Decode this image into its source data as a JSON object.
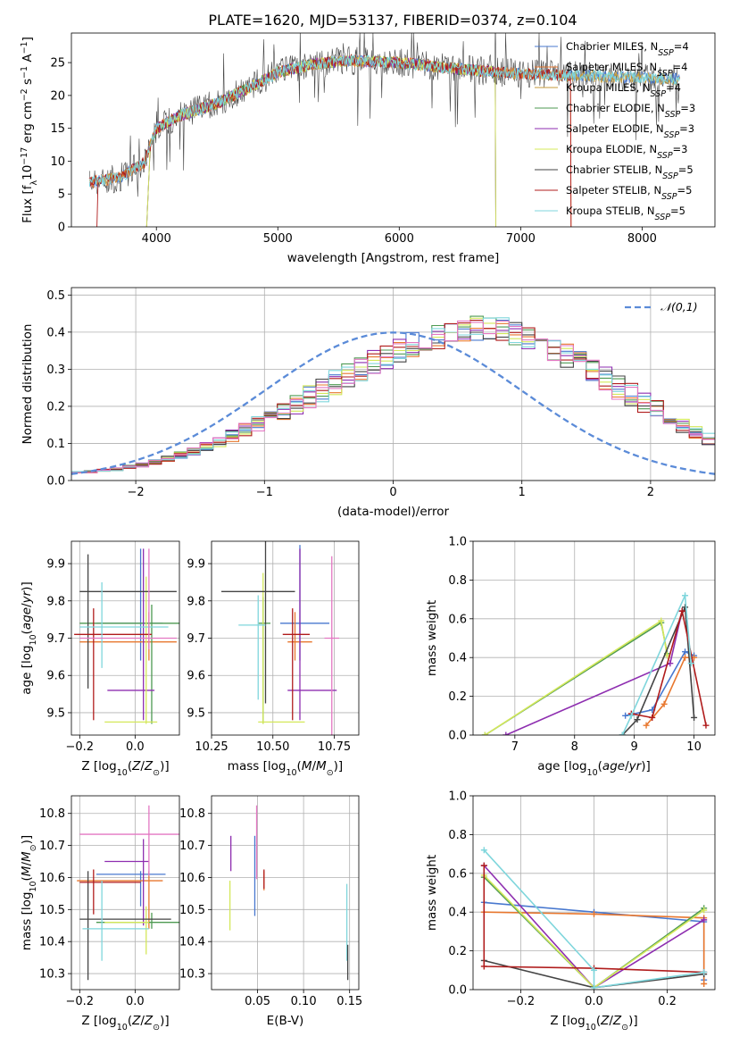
{
  "colors": {
    "Chabrier MILES": "#4878cf",
    "Salpeter MILES": "#e8772e",
    "Kroupa MILES": "#c49a3a",
    "Chabrier ELODIE": "#4e9a52",
    "Salpeter ELODIE": "#8e2eb0",
    "Kroupa ELODIE": "#d4e85a",
    "Chabrier STELIB": "#444444",
    "Salpeter STELIB": "#b01c1c",
    "Kroupa STELIB": "#7fd6dc",
    "gauss": "#5b8bd8",
    "extra": "#e377c2"
  },
  "chart_data": [
    {
      "type": "line",
      "title": "PLATE=1620, MJD=53137, FIBERID=0374, z=0.104",
      "xlabel": "wavelength [Angstrom, rest frame]",
      "ylabel": "Flux [f_λ10^-17 erg cm^-2 s^-1 A^-1]",
      "xlim": [
        3300,
        8600
      ],
      "ylim": [
        0,
        29.5
      ],
      "xticks": [
        4000,
        5000,
        6000,
        7000,
        8000
      ],
      "yticks": [
        0,
        5,
        10,
        15,
        20,
        25
      ],
      "legend": [
        "Chabrier MILES, N_SSP=4",
        "Salpeter MILES, N_SSP=4",
        "Kroupa MILES, N_SSP=4",
        "Chabrier ELODIE, N_SSP=3",
        "Salpeter ELODIE, N_SSP=3",
        "Kroupa ELODIE, N_SSP=3",
        "Chabrier STELIB, N_SSP=5",
        "Salpeter STELIB, N_SSP=5",
        "Kroupa STELIB, N_SSP=5"
      ],
      "legend_position": "right",
      "continuum": {
        "x": [
          3450,
          3700,
          3900,
          4000,
          4200,
          4500,
          4800,
          5000,
          5300,
          5600,
          6000,
          6500,
          7000,
          7500,
          8000,
          8300
        ],
        "y": [
          6.8,
          7.5,
          9.8,
          15.0,
          17.0,
          18.8,
          21.5,
          23.5,
          24.8,
          25.3,
          25.0,
          24.0,
          23.3,
          23.0,
          22.7,
          22.5
        ]
      }
    },
    {
      "type": "histogram",
      "xlabel": "(data-model)/error",
      "ylabel": "Normed distribution",
      "xlim": [
        -2.5,
        2.5
      ],
      "ylim": [
        0,
        0.52
      ],
      "xticks": [
        -2,
        -1,
        0,
        1,
        2
      ],
      "yticks": [
        0.0,
        0.1,
        0.2,
        0.3,
        0.4,
        0.5
      ],
      "legend": "𝒩(0,1)",
      "bin_width": 0.1,
      "bin_start": -2.5,
      "base": [
        0.022,
        0.024,
        0.027,
        0.031,
        0.036,
        0.042,
        0.05,
        0.058,
        0.068,
        0.08,
        0.092,
        0.105,
        0.12,
        0.136,
        0.152,
        0.168,
        0.186,
        0.204,
        0.225,
        0.245,
        0.264,
        0.282,
        0.3,
        0.318,
        0.336,
        0.352,
        0.366,
        0.378,
        0.39,
        0.398,
        0.404,
        0.408,
        0.408,
        0.404,
        0.396,
        0.386,
        0.374,
        0.358,
        0.34,
        0.32,
        0.298,
        0.276,
        0.254,
        0.232,
        0.212,
        0.19,
        0.168,
        0.148,
        0.13,
        0.112,
        0.097,
        0.083,
        0.07,
        0.06,
        0.052,
        0.045,
        0.04,
        0.035,
        0.031,
        0.027,
        0.024,
        0.022,
        0.02,
        0.02,
        0.02,
        0.02,
        0.02,
        0.02,
        0.02,
        0.02,
        0.02,
        0.02,
        0.02,
        0.02,
        0.02,
        0.02,
        0.02,
        0.02,
        0.02,
        0.02,
        0.02,
        0.02,
        0.02,
        0.02,
        0.02,
        0.02,
        0.02,
        0.02,
        0.02,
        0.02
      ]
    },
    {
      "type": "scatter",
      "xlabel": "Z [log10(Z/Z⊙)]",
      "ylabel": "age [log10(age/yr)]",
      "xlim": [
        -0.23,
        0.16
      ],
      "ylim": [
        9.44,
        9.96
      ],
      "xticks": [
        -0.2,
        0.0
      ],
      "yticks": [
        9.5,
        9.6,
        9.7,
        9.8,
        9.9
      ],
      "points": [
        {
          "model": "Chabrier MILES",
          "x": 0.02,
          "y": 9.74,
          "xerr": [
            0.16,
            0.08
          ],
          "yerr": [
            0.1,
            0.2
          ]
        },
        {
          "model": "Salpeter MILES",
          "x": 0.05,
          "y": 9.69,
          "xerr": [
            0.25,
            0.1
          ],
          "yerr": [
            0.05,
            0.08
          ]
        },
        {
          "model": "Chabrier ELODIE",
          "x": 0.06,
          "y": 9.74,
          "xerr": [
            0.26,
            0.1
          ],
          "yerr": [
            0.27,
            0.05
          ]
        },
        {
          "model": "Salpeter ELODIE",
          "x": 0.03,
          "y": 9.56,
          "xerr": [
            0.13,
            0.04
          ],
          "yerr": [
            0.08,
            0.38
          ]
        },
        {
          "model": "Kroupa ELODIE",
          "x": 0.04,
          "y": 9.475,
          "xerr": [
            0.15,
            0.04
          ],
          "yerr": [
            0.005,
            0.39
          ]
        },
        {
          "model": "Chabrier STELIB",
          "x": -0.17,
          "y": 9.825,
          "xerr": [
            0.03,
            0.32
          ],
          "yerr": [
            0.26,
            0.1
          ]
        },
        {
          "model": "Salpeter STELIB",
          "x": -0.15,
          "y": 9.71,
          "xerr": [
            0.07,
            0.21
          ],
          "yerr": [
            0.23,
            0.07
          ]
        },
        {
          "model": "Kroupa STELIB",
          "x": -0.12,
          "y": 9.73,
          "xerr": [
            0.08,
            0.24
          ],
          "yerr": [
            0.11,
            0.12
          ]
        },
        {
          "model": "extra",
          "x": 0.05,
          "y": 9.7,
          "xerr": [
            0.25,
            0.1
          ],
          "yerr": [
            0.03,
            0.24
          ]
        }
      ]
    },
    {
      "type": "scatter",
      "xlabel": "mass [log10(M/M⊙)]",
      "ylabel": "",
      "xlim": [
        10.25,
        10.85
      ],
      "ylim": [
        9.44,
        9.96
      ],
      "xticks": [
        10.25,
        10.5,
        10.75
      ],
      "yticks": [
        9.5,
        9.6,
        9.7,
        9.8,
        9.9
      ],
      "points": [
        {
          "model": "Chabrier MILES",
          "x": 10.61,
          "y": 9.74,
          "xerr": [
            0.08,
            0.12
          ],
          "yerr": [
            0.1,
            0.21
          ]
        },
        {
          "model": "Salpeter MILES",
          "x": 10.59,
          "y": 9.69,
          "xerr": [
            0.03,
            0.07
          ],
          "yerr": [
            0.05,
            0.08
          ]
        },
        {
          "model": "Chabrier ELODIE",
          "x": 10.46,
          "y": 9.74,
          "xerr": [
            0.02,
            0.03
          ],
          "yerr": [
            0.27,
            0.07
          ]
        },
        {
          "model": "Salpeter ELODIE",
          "x": 10.61,
          "y": 9.56,
          "xerr": [
            0.05,
            0.15
          ],
          "yerr": [
            0.08,
            0.38
          ]
        },
        {
          "model": "Kroupa ELODIE",
          "x": 10.46,
          "y": 9.475,
          "xerr": [
            0.02,
            0.17
          ],
          "yerr": [
            0.005,
            0.4
          ]
        },
        {
          "model": "Chabrier STELIB",
          "x": 10.47,
          "y": 9.825,
          "xerr": [
            0.18,
            0.12
          ],
          "yerr": [
            0.3,
            0.14
          ]
        },
        {
          "model": "Salpeter STELIB",
          "x": 10.58,
          "y": 9.71,
          "xerr": [
            0.04,
            0.07
          ],
          "yerr": [
            0.23,
            0.07
          ]
        },
        {
          "model": "Kroupa STELIB",
          "x": 10.44,
          "y": 9.735,
          "xerr": [
            0.08,
            0.03
          ],
          "yerr": [
            0.2,
            0.08
          ]
        },
        {
          "model": "extra",
          "x": 10.74,
          "y": 9.7,
          "xerr": [
            0.03,
            0.03
          ],
          "yerr": [
            0.26,
            0.22
          ]
        }
      ]
    },
    {
      "type": "line",
      "xlabel": "age [log10(age/yr)]",
      "ylabel": "mass weight",
      "xlim": [
        6.3,
        10.35
      ],
      "ylim": [
        0,
        1
      ],
      "xticks": [
        7,
        8,
        9,
        10
      ],
      "yticks": [
        0.0,
        0.2,
        0.4,
        0.6,
        0.8,
        1.0
      ],
      "series": [
        {
          "model": "Chabrier MILES",
          "x": [
            8.85,
            9.3,
            9.85,
            10.0
          ],
          "y": [
            0.1,
            0.13,
            0.43,
            0.41
          ]
        },
        {
          "model": "Salpeter MILES",
          "x": [
            9.2,
            9.5,
            9.85,
            10.0
          ],
          "y": [
            0.05,
            0.16,
            0.4,
            0.4
          ]
        },
        {
          "model": "Chabrier ELODIE",
          "x": [
            6.5,
            9.45,
            9.55
          ],
          "y": [
            0.0,
            0.58,
            0.42
          ]
        },
        {
          "model": "Salpeter ELODIE",
          "x": [
            6.85,
            9.6,
            9.8
          ],
          "y": [
            0.0,
            0.37,
            0.64
          ]
        },
        {
          "model": "Kroupa ELODIE",
          "x": [
            6.5,
            9.45,
            9.55
          ],
          "y": [
            0.0,
            0.59,
            0.41
          ]
        },
        {
          "model": "Chabrier STELIB",
          "x": [
            8.8,
            9.05,
            9.85,
            10.0
          ],
          "y": [
            0.0,
            0.08,
            0.66,
            0.09
          ]
        },
        {
          "model": "Salpeter STELIB",
          "x": [
            8.95,
            9.3,
            9.8,
            10.2
          ],
          "y": [
            0.11,
            0.09,
            0.64,
            0.05
          ]
        },
        {
          "model": "Kroupa STELIB",
          "x": [
            8.8,
            8.95,
            9.85,
            9.95
          ],
          "y": [
            0.0,
            0.1,
            0.72,
            0.37
          ]
        }
      ]
    },
    {
      "type": "scatter",
      "xlabel": "Z [log10(Z/Z⊙)]",
      "ylabel": "mass [log10(M/M⊙)]",
      "xlim": [
        -0.23,
        0.16
      ],
      "ylim": [
        10.25,
        10.855
      ],
      "xticks": [
        -0.2,
        0.0
      ],
      "yticks": [
        10.3,
        10.4,
        10.5,
        10.6,
        10.7,
        10.8
      ],
      "points": [
        {
          "model": "Chabrier MILES",
          "x": 0.02,
          "y": 10.61,
          "xerr": [
            0.16,
            0.09
          ],
          "yerr": [
            0.1,
            0.01
          ]
        },
        {
          "model": "Salpeter MILES",
          "x": 0.05,
          "y": 10.59,
          "xerr": [
            0.26,
            0.05
          ],
          "yerr": [
            0.15,
            0.03
          ]
        },
        {
          "model": "Chabrier ELODIE",
          "x": 0.06,
          "y": 10.46,
          "xerr": [
            0.2,
            0.1
          ],
          "yerr": [
            0.02,
            0.03
          ]
        },
        {
          "model": "Salpeter ELODIE",
          "x": 0.03,
          "y": 10.65,
          "xerr": [
            0.14,
            0.02
          ],
          "yerr": [
            0.2,
            0.07
          ]
        },
        {
          "model": "Kroupa ELODIE",
          "x": 0.04,
          "y": 10.46,
          "xerr": [
            0.15,
            0.01
          ],
          "yerr": [
            0.1,
            0.05
          ]
        },
        {
          "model": "Chabrier STELIB",
          "x": -0.17,
          "y": 10.47,
          "xerr": [
            0.03,
            0.3
          ],
          "yerr": [
            0.19,
            0.15
          ]
        },
        {
          "model": "Salpeter STELIB",
          "x": -0.15,
          "y": 10.585,
          "xerr": [
            0.05,
            0.17
          ],
          "yerr": [
            0.1,
            0.04
          ]
        },
        {
          "model": "Kroupa STELIB",
          "x": -0.12,
          "y": 10.44,
          "xerr": [
            0.07,
            0.17
          ],
          "yerr": [
            0.1,
            0.15
          ]
        },
        {
          "model": "extra",
          "x": 0.05,
          "y": 10.735,
          "xerr": [
            0.25,
            0.11
          ],
          "yerr": [
            0.13,
            0.09
          ]
        }
      ]
    },
    {
      "type": "scatter",
      "xlabel": "E(B-V)",
      "ylabel": "",
      "xlim": [
        0.0,
        0.16
      ],
      "ylim": [
        10.25,
        10.855
      ],
      "xticks": [
        0.05,
        0.1,
        0.15
      ],
      "yticks": [
        10.3,
        10.4,
        10.5,
        10.6,
        10.7,
        10.8
      ],
      "points": [
        {
          "model": "Salpeter ELODIE",
          "x": 0.021,
          "y": 10.65,
          "xerr": [
            0,
            0
          ],
          "yerr": [
            0.03,
            0.08
          ]
        },
        {
          "model": "Kroupa ELODIE",
          "x": 0.02,
          "y": 10.46,
          "xerr": [
            0,
            0
          ],
          "yerr": [
            0.025,
            0.13
          ]
        },
        {
          "model": "Chabrier MILES",
          "x": 0.047,
          "y": 10.61,
          "xerr": [
            0,
            0
          ],
          "yerr": [
            0.13,
            0.12
          ]
        },
        {
          "model": "extra",
          "x": 0.049,
          "y": 10.735,
          "xerr": [
            0,
            0
          ],
          "yerr": [
            0.14,
            0.09
          ]
        },
        {
          "model": "Salpeter MILES",
          "x": 0.057,
          "y": 10.59,
          "xerr": [
            0,
            0
          ],
          "yerr": [
            0.03,
            0.03
          ]
        },
        {
          "model": "Salpeter STELIB",
          "x": 0.057,
          "y": 10.585,
          "xerr": [
            0,
            0
          ],
          "yerr": [
            0.02,
            0.04
          ]
        },
        {
          "model": "Kroupa STELIB",
          "x": 0.147,
          "y": 10.44,
          "xerr": [
            0,
            0
          ],
          "yerr": [
            0.1,
            0.14
          ]
        },
        {
          "model": "Chabrier STELIB",
          "x": 0.148,
          "y": 10.3,
          "xerr": [
            0,
            0
          ],
          "yerr": [
            0.02,
            0.09
          ]
        }
      ]
    },
    {
      "type": "line",
      "xlabel": "Z [log10(Z/Z⊙)]",
      "ylabel": "mass weight",
      "xlim": [
        -0.33,
        0.33
      ],
      "ylim": [
        0,
        1
      ],
      "xticks": [
        -0.2,
        0.0,
        0.2
      ],
      "yticks": [
        0.0,
        0.2,
        0.4,
        0.6,
        0.8,
        1.0
      ],
      "series": [
        {
          "model": "Chabrier MILES",
          "x": [
            -0.3,
            0.0,
            0.3,
            0.3
          ],
          "y": [
            0.45,
            0.4,
            0.35,
            0.05
          ]
        },
        {
          "model": "Salpeter MILES",
          "x": [
            -0.3,
            0.0,
            0.3,
            0.3
          ],
          "y": [
            0.4,
            0.39,
            0.37,
            0.03
          ]
        },
        {
          "model": "Chabrier ELODIE",
          "x": [
            -0.3,
            0.0,
            0.3
          ],
          "y": [
            0.58,
            0.01,
            0.42
          ]
        },
        {
          "model": "Salpeter ELODIE",
          "x": [
            -0.3,
            0.0,
            0.3
          ],
          "y": [
            0.64,
            0.01,
            0.36
          ]
        },
        {
          "model": "Kroupa ELODIE",
          "x": [
            -0.3,
            0.0,
            0.3
          ],
          "y": [
            0.59,
            0.01,
            0.41
          ]
        },
        {
          "model": "Chabrier STELIB",
          "x": [
            -0.3,
            0.0,
            0.3
          ],
          "y": [
            0.15,
            0.01,
            0.08
          ]
        },
        {
          "model": "Salpeter STELIB",
          "x": [
            -0.3,
            -0.3,
            0.0,
            0.3
          ],
          "y": [
            0.64,
            0.12,
            0.11,
            0.09
          ]
        },
        {
          "model": "Kroupa STELIB",
          "x": [
            -0.3,
            0.0,
            0.0,
            0.3
          ],
          "y": [
            0.72,
            0.1,
            0.01,
            0.09
          ]
        }
      ]
    }
  ]
}
